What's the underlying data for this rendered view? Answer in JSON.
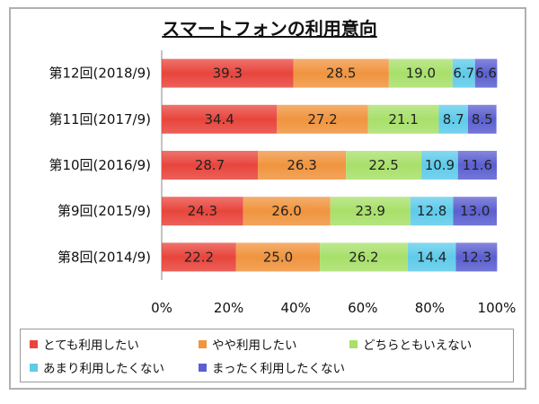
{
  "chart_data": {
    "type": "bar",
    "orientation": "horizontal",
    "stacked": true,
    "title": "スマートフォンの利用意向",
    "categories": [
      "第12回(2018/9)",
      "第11回(2017/9)",
      "第10回(2016/9)",
      "第9回(2015/9)",
      "第8回(2014/9)"
    ],
    "series": [
      {
        "name": "とても利用したい",
        "color": "#e8453c",
        "values": [
          39.3,
          34.4,
          28.7,
          24.3,
          22.2
        ],
        "labels": [
          "39.3",
          "34.4",
          "28.7",
          "24.3",
          "22.2"
        ]
      },
      {
        "name": "やや利用したい",
        "color": "#f0943e",
        "values": [
          28.5,
          27.2,
          26.3,
          26.0,
          25.0
        ],
        "labels": [
          "28.5",
          "27.2",
          "26.3",
          "26.0",
          "25.0"
        ]
      },
      {
        "name": "どちらともいえない",
        "color": "#a8e06a",
        "values": [
          19.0,
          21.1,
          22.5,
          23.9,
          26.2
        ],
        "labels": [
          "19.0",
          "21.1",
          "22.5",
          "23.9",
          "26.2"
        ]
      },
      {
        "name": "あまり利用したくない",
        "color": "#5ecbea",
        "values": [
          6.7,
          8.7,
          10.9,
          12.8,
          14.4
        ],
        "labels": [
          "6.7",
          "8.7",
          "10.9",
          "12.8",
          "14.4"
        ]
      },
      {
        "name": "まったく利用したくない",
        "color": "#5b5fd0",
        "values": [
          6.6,
          8.5,
          11.6,
          13.0,
          12.3
        ],
        "labels": [
          "6.6",
          "8.5",
          "11.6",
          "13.0",
          "12.3"
        ]
      }
    ],
    "xlim": [
      0,
      100
    ],
    "xticks": [
      "0%",
      "20%",
      "40%",
      "60%",
      "80%",
      "100%"
    ],
    "legend_position": "bottom"
  }
}
